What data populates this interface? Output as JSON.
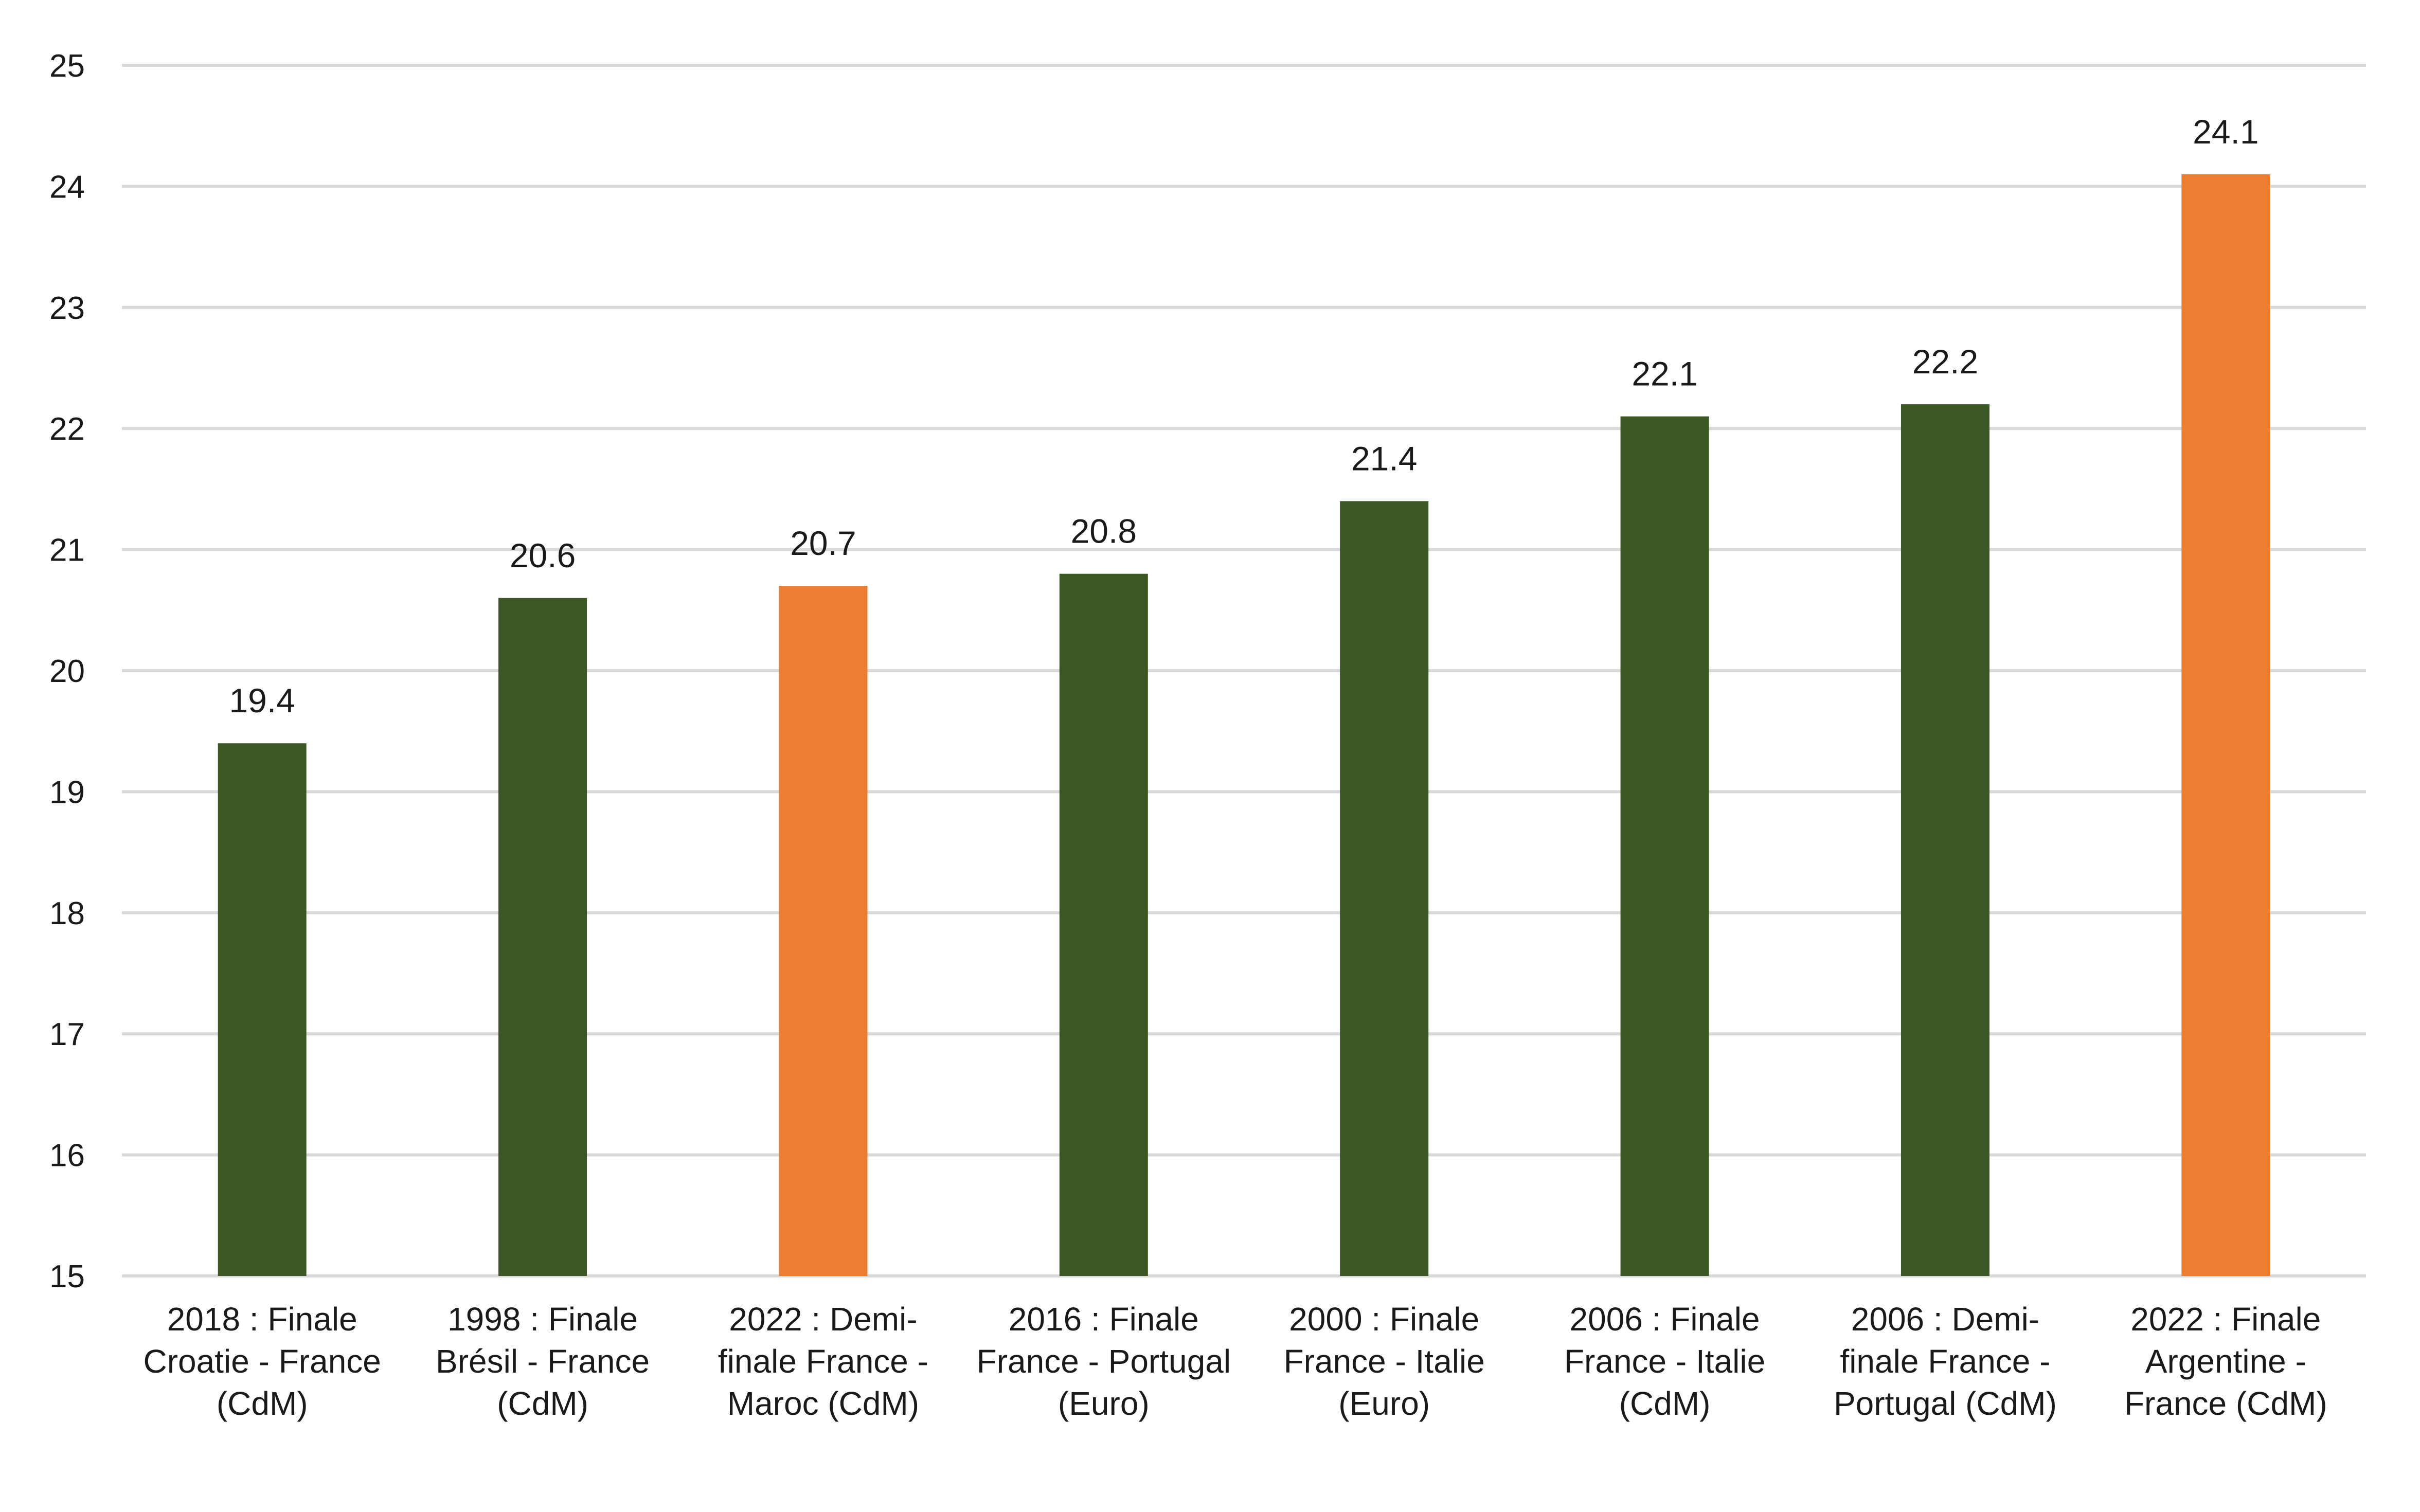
{
  "chart_data": {
    "type": "bar",
    "title": "",
    "xlabel": "",
    "ylabel": "",
    "ylim": [
      15,
      25
    ],
    "yticks": [
      15,
      16,
      17,
      18,
      19,
      20,
      21,
      22,
      23,
      24,
      25
    ],
    "grid": true,
    "legend": "none",
    "categories": [
      [
        "2018 : Finale",
        "Croatie - France",
        "(CdM)"
      ],
      [
        "1998 : Finale",
        "Brésil - France",
        "(CdM)"
      ],
      [
        "2022 : Demi-",
        "finale France -",
        "Maroc  (CdM)"
      ],
      [
        "2016 : Finale",
        "France - Portugal",
        "(Euro)"
      ],
      [
        "2000 : Finale",
        "France - Italie",
        "(Euro)"
      ],
      [
        "2006 : Finale",
        "France - Italie",
        "(CdM)"
      ],
      [
        "2006 : Demi-",
        "finale France -",
        "Portugal (CdM)"
      ],
      [
        "2022 : Finale",
        "Argentine -",
        "France (CdM)"
      ]
    ],
    "values": [
      19.4,
      20.6,
      20.7,
      20.8,
      21.4,
      22.1,
      22.2,
      24.1
    ],
    "data_labels": [
      "19.4",
      "20.6",
      "20.7",
      "20.8",
      "21.4",
      "22.1",
      "22.2",
      "24.1"
    ],
    "bar_colors": [
      "#3b5724",
      "#3b5724",
      "#ed7d31",
      "#3b5724",
      "#3b5724",
      "#3b5724",
      "#3b5724",
      "#ed7d31"
    ]
  }
}
